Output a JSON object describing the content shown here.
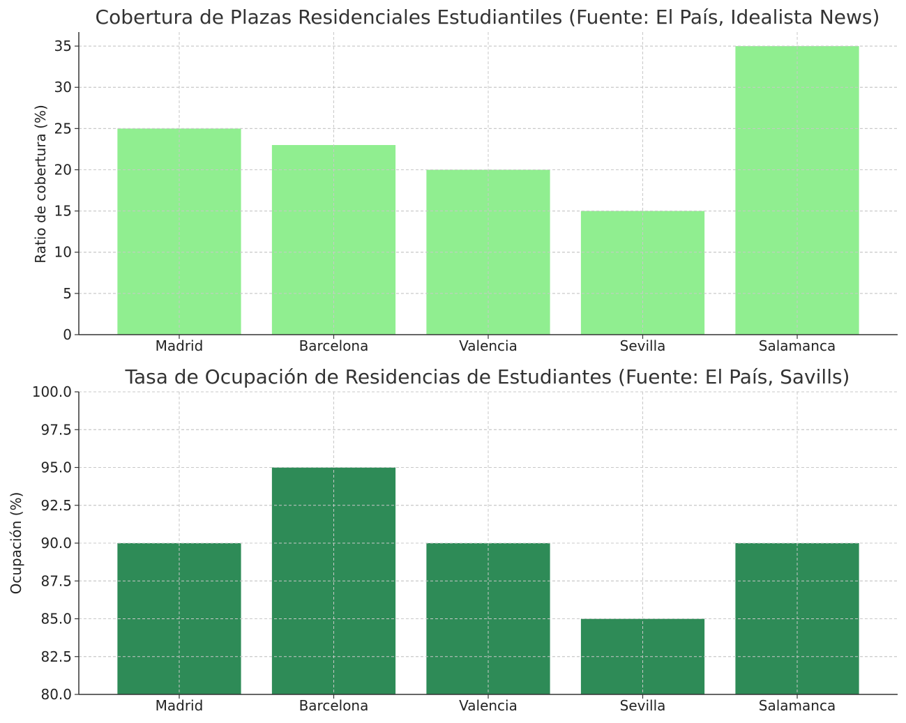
{
  "chart_data": [
    {
      "type": "bar",
      "title": "Cobertura de Plazas Residenciales Estudiantiles (Fuente: El País, Idealista News)",
      "xlabel": "",
      "ylabel": "Ratio de cobertura (%)",
      "categories": [
        "Madrid",
        "Barcelona",
        "Valencia",
        "Sevilla",
        "Salamanca"
      ],
      "values": [
        25,
        23,
        20,
        15,
        35
      ],
      "ylim": [
        0,
        36.7
      ],
      "yticks": [
        0,
        5,
        10,
        15,
        20,
        25,
        30,
        35
      ],
      "ytick_labels": [
        "0",
        "5",
        "10",
        "15",
        "20",
        "25",
        "30",
        "35"
      ],
      "color": "#90ee90",
      "grid": true
    },
    {
      "type": "bar",
      "title": "Tasa de Ocupación de Residencias de Estudiantes (Fuente: El País, Savills)",
      "xlabel": "",
      "ylabel": "Ocupación (%)",
      "categories": [
        "Madrid",
        "Barcelona",
        "Valencia",
        "Sevilla",
        "Salamanca"
      ],
      "values": [
        90,
        95,
        90,
        85,
        90
      ],
      "ylim": [
        80,
        100
      ],
      "yticks": [
        80,
        82.5,
        85,
        87.5,
        90,
        92.5,
        95,
        97.5,
        100
      ],
      "ytick_labels": [
        "80.0",
        "82.5",
        "85.0",
        "87.5",
        "90.0",
        "92.5",
        "95.0",
        "97.5",
        "100.0"
      ],
      "color": "#2e8b57",
      "grid": true
    }
  ]
}
